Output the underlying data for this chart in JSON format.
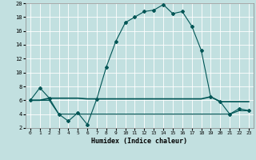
{
  "title": "",
  "xlabel": "Humidex (Indice chaleur)",
  "background_color": "#c2e0e0",
  "grid_color": "#ffffff",
  "line_color": "#005555",
  "xlim": [
    -0.5,
    23.5
  ],
  "ylim": [
    2,
    20
  ],
  "xticks": [
    0,
    1,
    2,
    3,
    4,
    5,
    6,
    7,
    8,
    9,
    10,
    11,
    12,
    13,
    14,
    15,
    16,
    17,
    18,
    19,
    20,
    21,
    22,
    23
  ],
  "yticks": [
    2,
    4,
    6,
    8,
    10,
    12,
    14,
    16,
    18,
    20
  ],
  "line1_x": [
    0,
    1,
    2,
    3,
    4,
    5,
    6,
    7,
    8,
    9,
    10,
    11,
    12,
    13,
    14,
    15,
    16,
    17,
    18,
    19,
    20,
    21,
    22,
    23
  ],
  "line1_y": [
    6.0,
    7.8,
    6.3,
    4.0,
    3.0,
    4.2,
    2.5,
    6.2,
    10.8,
    14.5,
    17.2,
    18.0,
    18.8,
    19.0,
    19.8,
    18.5,
    18.8,
    16.7,
    13.2,
    6.5,
    5.8,
    4.0,
    4.8,
    4.5
  ],
  "line2_x": [
    0,
    1,
    2,
    3,
    4,
    5,
    6,
    7,
    8,
    9,
    10,
    11,
    12,
    13,
    14,
    15,
    16,
    17,
    18,
    19,
    20,
    21,
    22,
    23
  ],
  "line2_y": [
    6.0,
    6.0,
    6.3,
    6.3,
    6.3,
    6.3,
    6.2,
    6.2,
    6.2,
    6.2,
    6.2,
    6.2,
    6.2,
    6.2,
    6.2,
    6.2,
    6.2,
    6.2,
    6.2,
    6.5,
    5.8,
    5.8,
    5.8,
    5.8
  ],
  "line3_x": [
    0,
    1,
    2,
    3,
    4,
    5,
    6,
    7,
    8,
    9,
    10,
    11,
    12,
    13,
    14,
    15,
    16,
    17,
    18,
    19,
    20,
    21,
    22,
    23
  ],
  "line3_y": [
    6.0,
    6.0,
    6.0,
    4.0,
    4.0,
    4.0,
    4.0,
    4.0,
    4.0,
    4.0,
    4.0,
    4.0,
    4.0,
    4.0,
    4.0,
    4.0,
    4.0,
    4.0,
    4.0,
    4.0,
    4.0,
    4.0,
    4.5,
    4.5
  ],
  "marker_size": 2.0,
  "lw1": 0.8,
  "lw2": 1.2,
  "lw3": 0.9
}
